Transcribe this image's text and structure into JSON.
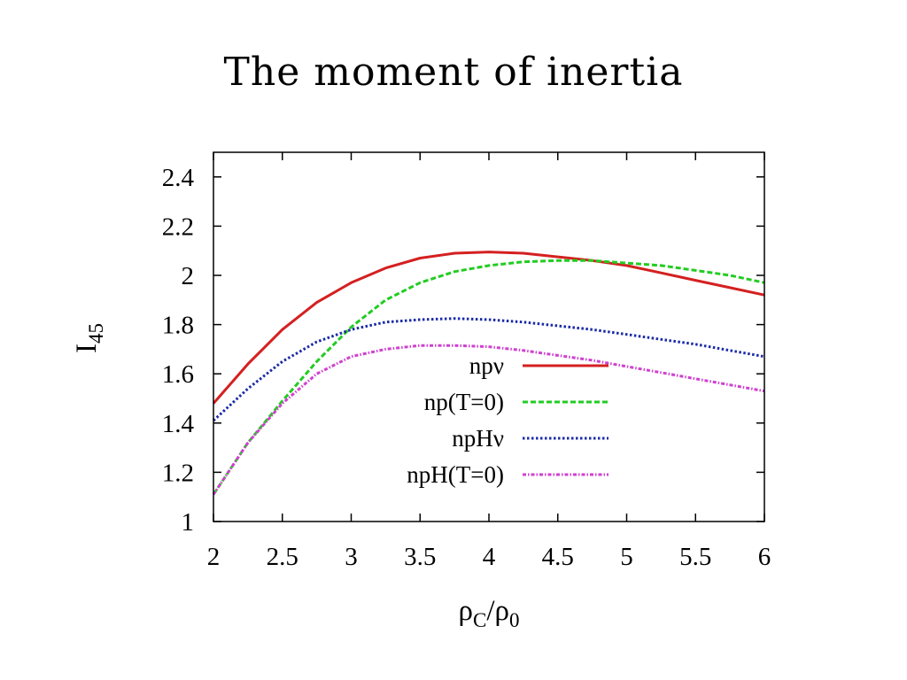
{
  "slide": {
    "title": "The moment of inertia"
  },
  "chart_data": {
    "type": "line",
    "title": "The moment of inertia",
    "xlabel_main": "ρ",
    "xlabel_sub1": "C",
    "xlabel_mid": "/ρ",
    "xlabel_sub2": "0",
    "ylabel_main": "I",
    "ylabel_sub": "45",
    "xlim": [
      2,
      6
    ],
    "ylim": [
      1,
      2.5
    ],
    "xticks": [
      2,
      2.5,
      3,
      3.5,
      4,
      4.5,
      5,
      5.5,
      6
    ],
    "xtick_labels": [
      "2",
      "2.5",
      "3",
      "3.5",
      "4",
      "4.5",
      "5",
      "5.5",
      "6"
    ],
    "yticks": [
      1,
      1.2,
      1.4,
      1.6,
      1.8,
      2,
      2.2,
      2.4
    ],
    "ytick_labels": [
      "1",
      "1.2",
      "1.4",
      "1.6",
      "1.8",
      "2",
      "2.2",
      "2.4"
    ],
    "grid": false,
    "legend_position": "center",
    "x": [
      2.0,
      2.25,
      2.5,
      2.75,
      3.0,
      3.25,
      3.5,
      3.75,
      4.0,
      4.25,
      4.5,
      4.75,
      5.0,
      5.25,
      5.5,
      5.75,
      6.0
    ],
    "series": [
      {
        "name": "npν",
        "color": "#d42020",
        "style": "solid",
        "values": [
          1.48,
          1.64,
          1.78,
          1.89,
          1.97,
          2.03,
          2.07,
          2.09,
          2.095,
          2.09,
          2.075,
          2.06,
          2.04,
          2.01,
          1.98,
          1.95,
          1.92
        ]
      },
      {
        "name": "np(T=0)",
        "color": "#22cc22",
        "style": "dashed",
        "values": [
          1.11,
          1.32,
          1.49,
          1.65,
          1.79,
          1.9,
          1.97,
          2.015,
          2.04,
          2.055,
          2.06,
          2.06,
          2.05,
          2.04,
          2.02,
          2.0,
          1.97
        ]
      },
      {
        "name": "npHν",
        "color": "#1a2aa8",
        "style": "dotted",
        "values": [
          1.41,
          1.54,
          1.65,
          1.73,
          1.78,
          1.81,
          1.82,
          1.825,
          1.82,
          1.81,
          1.795,
          1.78,
          1.76,
          1.74,
          1.72,
          1.695,
          1.67
        ]
      },
      {
        "name": "npH(T=0)",
        "color": "#d040d0",
        "style": "dashdot",
        "values": [
          1.11,
          1.32,
          1.48,
          1.6,
          1.67,
          1.7,
          1.715,
          1.715,
          1.71,
          1.695,
          1.675,
          1.655,
          1.63,
          1.605,
          1.58,
          1.555,
          1.53
        ]
      }
    ]
  }
}
